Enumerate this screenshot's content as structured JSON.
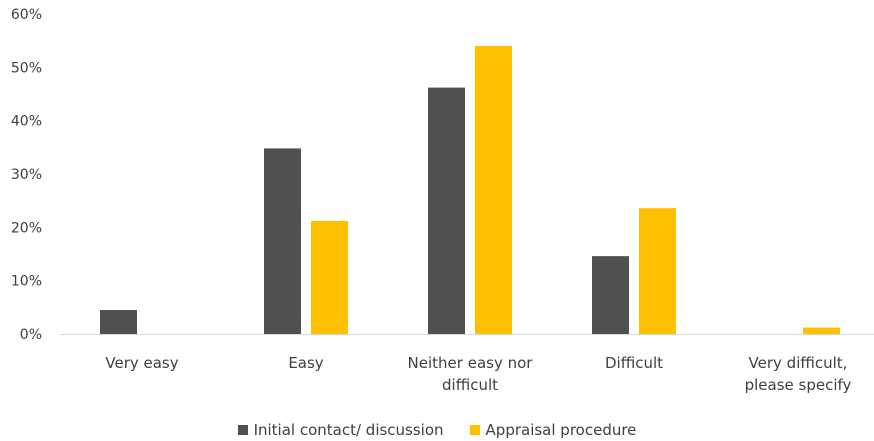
{
  "chart_data": {
    "type": "bar",
    "categories": [
      [
        "Very easy"
      ],
      [
        "Easy"
      ],
      [
        "Neither easy nor",
        "difficult"
      ],
      [
        "Difficult"
      ],
      [
        "Very difficult,",
        "please specify"
      ]
    ],
    "series": [
      {
        "name": "Initial contact/ discussion",
        "color": "#505050",
        "values": [
          4.5,
          34.8,
          46.2,
          14.6,
          0
        ]
      },
      {
        "name": "Appraisal procedure",
        "color": "#FFC000",
        "values": [
          0,
          21.2,
          54.0,
          23.6,
          1.2
        ]
      }
    ],
    "ylim": [
      0,
      60
    ],
    "yticks": [
      "0%",
      "10%",
      "20%",
      "30%",
      "40%",
      "50%",
      "60%"
    ],
    "ytick_values": [
      0,
      10,
      20,
      30,
      40,
      50,
      60
    ],
    "grid": false,
    "legend_position": "bottom"
  }
}
